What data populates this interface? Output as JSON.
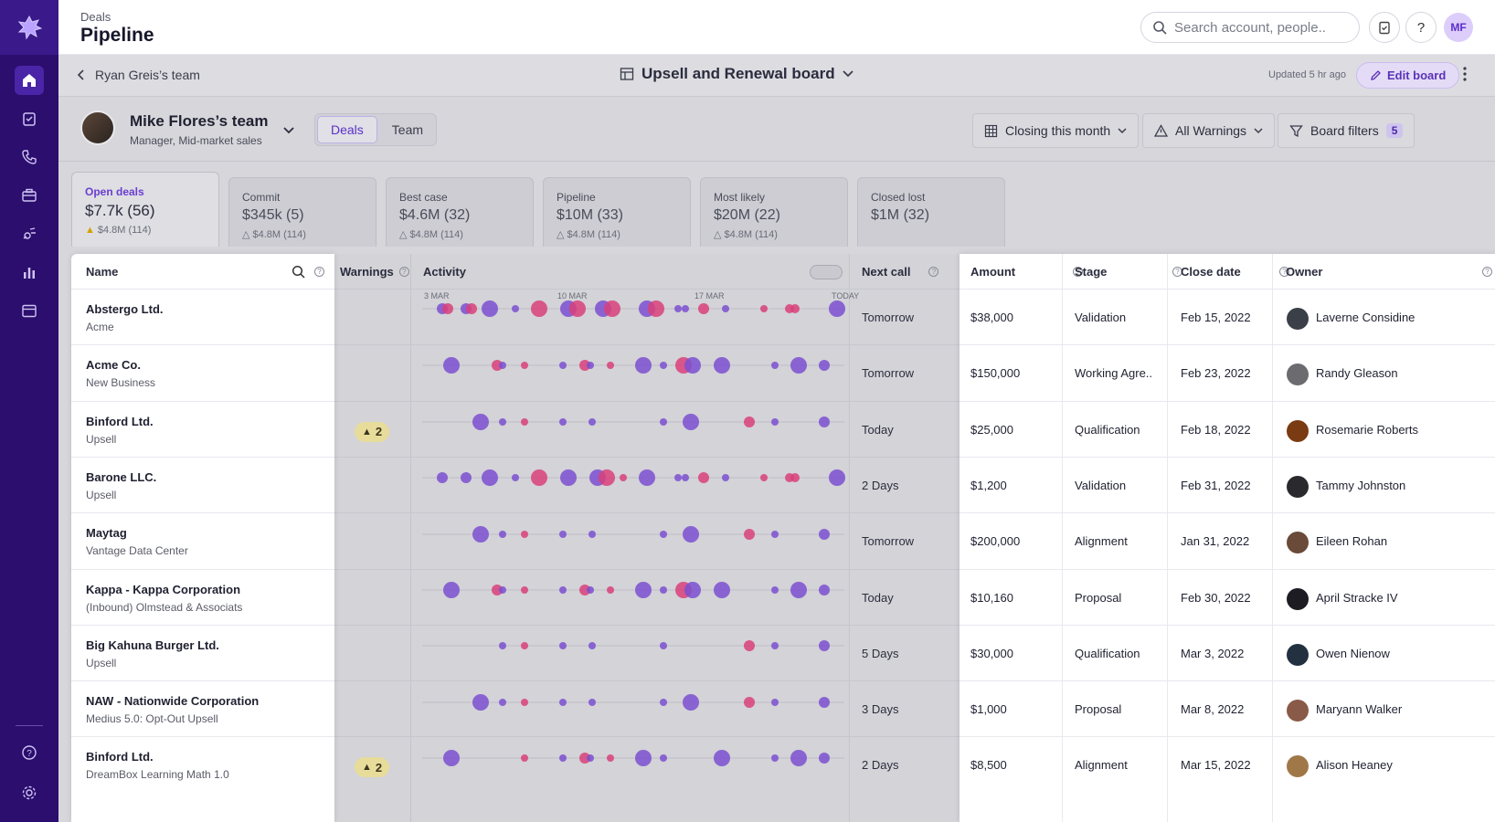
{
  "header": {
    "crumb": "Deals",
    "title": "Pipeline",
    "search_placeholder": "Search account, people..",
    "user_initials": "MF",
    "help_label": "?"
  },
  "subbar": {
    "back_label": "Ryan Greis’s team",
    "board_title": "Upsell and Renewal board",
    "updated": "Updated 5 hr ago",
    "edit_label": "Edit board"
  },
  "team": {
    "name": "Mike Flores’s team",
    "role": "Manager, Mid-market sales",
    "segments": [
      "Deals",
      "Team"
    ],
    "filters": {
      "closing": "Closing this month",
      "warnings": "All Warnings",
      "board_filters": "Board filters",
      "board_filters_count": "5"
    }
  },
  "cards": [
    {
      "label": "Open deals",
      "value": "$7.7k (56)",
      "sub": "$4.8M (114)"
    },
    {
      "label": "Commit",
      "value": "$345k (5)",
      "sub": "$4.8M (114)"
    },
    {
      "label": "Best case",
      "value": "$4.6M (32)",
      "sub": "$4.8M (114)"
    },
    {
      "label": "Pipeline",
      "value": "$10M (33)",
      "sub": "$4.8M (114)"
    },
    {
      "label": "Most likely",
      "value": "$20M (22)",
      "sub": "$4.8M (114)"
    },
    {
      "label": "Closed lost",
      "value": "$1M (32)",
      "sub": ""
    }
  ],
  "columns": {
    "name": "Name",
    "warnings": "Warnings",
    "activity": "Activity",
    "next_call": "Next call",
    "amount": "Amount",
    "stage": "Stage",
    "close_date": "Close date",
    "owner": "Owner"
  },
  "activity_axis": [
    "3 MAR",
    "10 MAR",
    "17 MAR",
    "TODAY"
  ],
  "rows": [
    {
      "name": "Abstergo Ltd.",
      "sub": "Acme",
      "warnings": "",
      "next_call": "Tomorrow",
      "amount": "$38,000",
      "stage": "Validation",
      "close_date": "Feb 15, 2022",
      "owner": "Laverne Considine"
    },
    {
      "name": "Acme Co.",
      "sub": "New Business",
      "warnings": "",
      "next_call": "Tomorrow",
      "amount": "$150,000",
      "stage": "Working Agre..",
      "close_date": "Feb 23, 2022",
      "owner": "Randy Gleason"
    },
    {
      "name": "Binford Ltd.",
      "sub": "Upsell",
      "warnings": "2",
      "next_call": "Today",
      "amount": "$25,000",
      "stage": "Qualification",
      "close_date": "Feb 18, 2022",
      "owner": "Rosemarie Roberts"
    },
    {
      "name": "Barone LLC.",
      "sub": "Upsell",
      "warnings": "",
      "next_call": "2 Days",
      "amount": "$1,200",
      "stage": "Validation",
      "close_date": "Feb 31, 2022",
      "owner": "Tammy Johnston"
    },
    {
      "name": "Maytag",
      "sub": "Vantage Data Center",
      "warnings": "",
      "next_call": "Tomorrow",
      "amount": "$200,000",
      "stage": "Alignment",
      "close_date": "Jan 31, 2022",
      "owner": "Eileen Rohan"
    },
    {
      "name": "Kappa - Kappa Corporation",
      "sub": "(Inbound) Olmstead & Associats",
      "warnings": "",
      "next_call": "Today",
      "amount": "$10,160",
      "stage": "Proposal",
      "close_date": "Feb 30, 2022",
      "owner": "April Stracke IV"
    },
    {
      "name": "Big Kahuna Burger Ltd.",
      "sub": "Upsell",
      "warnings": "",
      "next_call": "5 Days",
      "amount": "$30,000",
      "stage": "Qualification",
      "close_date": "Mar 3, 2022",
      "owner": "Owen Nienow"
    },
    {
      "name": "NAW - Nationwide Corporation",
      "sub": "Medius 5.0: Opt-Out Upsell",
      "warnings": "",
      "next_call": "3 Days",
      "amount": "$1,000",
      "stage": "Proposal",
      "close_date": "Mar 8, 2022",
      "owner": "Maryann Walker"
    },
    {
      "name": "Binford Ltd.",
      "sub": "DreamBox Learning Math 1.0",
      "warnings": "2",
      "next_call": "2 Days",
      "amount": "$8,500",
      "stage": "Alignment",
      "close_date": "Mar 15, 2022",
      "owner": "Alison Heaney"
    }
  ],
  "colors": {
    "nav": "#2b0e6e",
    "accent": "#5b2fc9",
    "activity_purple": "#7b4fd0",
    "activity_pink": "#d9407a"
  }
}
